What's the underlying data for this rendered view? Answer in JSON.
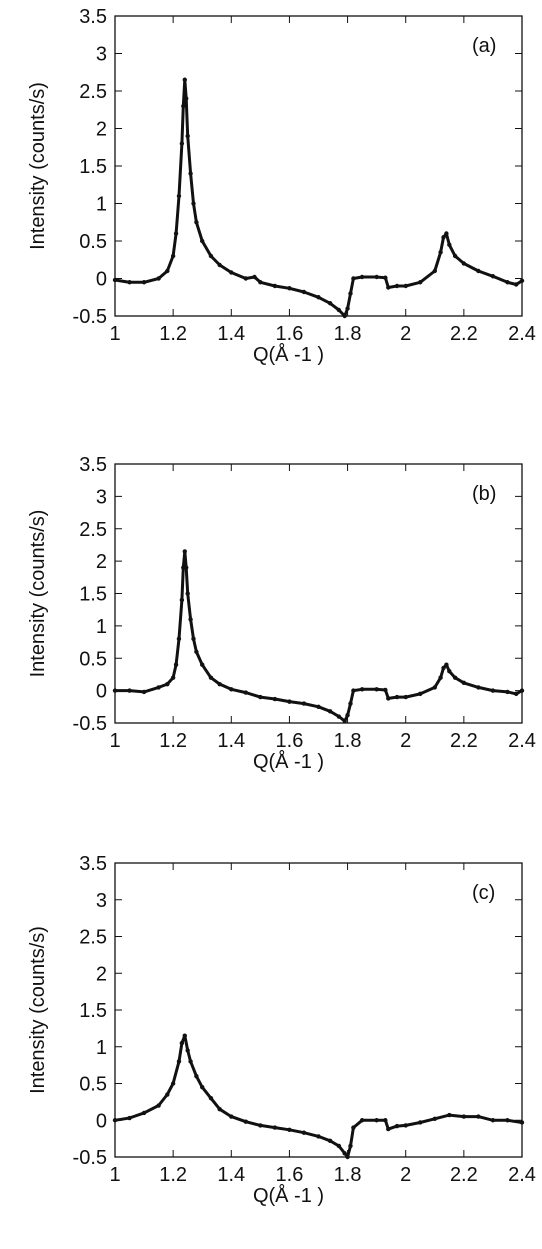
{
  "chart_data": [
    {
      "type": "line",
      "annotation": "(a)",
      "xlabel": "Q(Å -1 )",
      "ylabel": "Intensity  (counts/s)",
      "color": "#111111",
      "xlim": [
        1,
        2.4
      ],
      "ylim": [
        -0.5,
        3.5
      ],
      "xticks": [
        1,
        1.2,
        1.4,
        1.6,
        1.8,
        2,
        2.2,
        2.4
      ],
      "yticks": [
        -0.5,
        0,
        0.5,
        1,
        1.5,
        2,
        2.5,
        3,
        3.5
      ],
      "x": [
        1.0,
        1.05,
        1.1,
        1.15,
        1.18,
        1.2,
        1.21,
        1.22,
        1.23,
        1.235,
        1.24,
        1.245,
        1.25,
        1.26,
        1.27,
        1.28,
        1.3,
        1.33,
        1.36,
        1.4,
        1.45,
        1.48,
        1.5,
        1.55,
        1.6,
        1.65,
        1.7,
        1.74,
        1.77,
        1.79,
        1.8,
        1.81,
        1.82,
        1.85,
        1.9,
        1.93,
        1.94,
        1.97,
        2.0,
        2.05,
        2.1,
        2.12,
        2.13,
        2.14,
        2.15,
        2.17,
        2.2,
        2.25,
        2.3,
        2.35,
        2.38,
        2.4
      ],
      "values": [
        -0.02,
        -0.05,
        -0.05,
        0.0,
        0.1,
        0.3,
        0.6,
        1.1,
        1.8,
        2.3,
        2.65,
        2.4,
        1.9,
        1.4,
        1.0,
        0.75,
        0.5,
        0.3,
        0.18,
        0.08,
        0.0,
        0.02,
        -0.05,
        -0.1,
        -0.13,
        -0.18,
        -0.25,
        -0.33,
        -0.42,
        -0.5,
        -0.4,
        -0.2,
        0.0,
        0.02,
        0.02,
        0.01,
        -0.12,
        -0.1,
        -0.1,
        -0.05,
        0.1,
        0.35,
        0.55,
        0.6,
        0.45,
        0.3,
        0.2,
        0.1,
        0.03,
        -0.05,
        -0.08,
        -0.03
      ]
    },
    {
      "type": "line",
      "annotation": "(b)",
      "xlabel": "Q(Å -1 )",
      "ylabel": "Intensity  (counts/s)",
      "color": "#111111",
      "xlim": [
        1,
        2.4
      ],
      "ylim": [
        -0.5,
        3.5
      ],
      "xticks": [
        1,
        1.2,
        1.4,
        1.6,
        1.8,
        2,
        2.2,
        2.4
      ],
      "yticks": [
        -0.5,
        0,
        0.5,
        1,
        1.5,
        2,
        2.5,
        3,
        3.5
      ],
      "x": [
        1.0,
        1.05,
        1.1,
        1.15,
        1.18,
        1.2,
        1.21,
        1.22,
        1.23,
        1.235,
        1.24,
        1.245,
        1.25,
        1.26,
        1.27,
        1.28,
        1.3,
        1.33,
        1.36,
        1.4,
        1.45,
        1.5,
        1.55,
        1.6,
        1.65,
        1.7,
        1.74,
        1.77,
        1.79,
        1.8,
        1.81,
        1.82,
        1.85,
        1.9,
        1.93,
        1.94,
        1.97,
        2.0,
        2.05,
        2.1,
        2.12,
        2.13,
        2.14,
        2.15,
        2.17,
        2.2,
        2.25,
        2.3,
        2.35,
        2.38,
        2.4
      ],
      "values": [
        0.0,
        0.0,
        -0.02,
        0.05,
        0.1,
        0.2,
        0.4,
        0.8,
        1.4,
        1.9,
        2.15,
        1.9,
        1.5,
        1.1,
        0.8,
        0.6,
        0.4,
        0.2,
        0.1,
        0.02,
        -0.03,
        -0.1,
        -0.13,
        -0.17,
        -0.2,
        -0.25,
        -0.32,
        -0.4,
        -0.47,
        -0.38,
        -0.2,
        0.0,
        0.02,
        0.02,
        0.01,
        -0.12,
        -0.1,
        -0.1,
        -0.05,
        0.05,
        0.2,
        0.35,
        0.4,
        0.3,
        0.2,
        0.12,
        0.05,
        0.0,
        -0.02,
        -0.05,
        0.0
      ]
    },
    {
      "type": "line",
      "annotation": "(c)",
      "xlabel": "Q(Å -1 )",
      "ylabel": "Intensity  (counts/s)",
      "color": "#111111",
      "xlim": [
        1,
        2.4
      ],
      "ylim": [
        -0.5,
        3.5
      ],
      "xticks": [
        1,
        1.2,
        1.4,
        1.6,
        1.8,
        2,
        2.2,
        2.4
      ],
      "yticks": [
        -0.5,
        0,
        0.5,
        1,
        1.5,
        2,
        2.5,
        3,
        3.5
      ],
      "x": [
        1.0,
        1.05,
        1.1,
        1.15,
        1.18,
        1.2,
        1.22,
        1.23,
        1.24,
        1.25,
        1.26,
        1.28,
        1.3,
        1.33,
        1.36,
        1.4,
        1.45,
        1.5,
        1.55,
        1.6,
        1.65,
        1.7,
        1.74,
        1.77,
        1.79,
        1.8,
        1.81,
        1.82,
        1.85,
        1.9,
        1.93,
        1.94,
        1.97,
        2.0,
        2.05,
        2.1,
        2.15,
        2.2,
        2.25,
        2.3,
        2.35,
        2.4
      ],
      "values": [
        0.0,
        0.03,
        0.1,
        0.2,
        0.35,
        0.5,
        0.8,
        1.05,
        1.15,
        0.95,
        0.8,
        0.6,
        0.45,
        0.3,
        0.15,
        0.05,
        -0.02,
        -0.07,
        -0.1,
        -0.13,
        -0.17,
        -0.22,
        -0.28,
        -0.35,
        -0.45,
        -0.5,
        -0.35,
        -0.1,
        0.0,
        0.0,
        0.0,
        -0.12,
        -0.08,
        -0.07,
        -0.03,
        0.02,
        0.07,
        0.05,
        0.05,
        0.0,
        0.0,
        -0.03
      ]
    }
  ]
}
